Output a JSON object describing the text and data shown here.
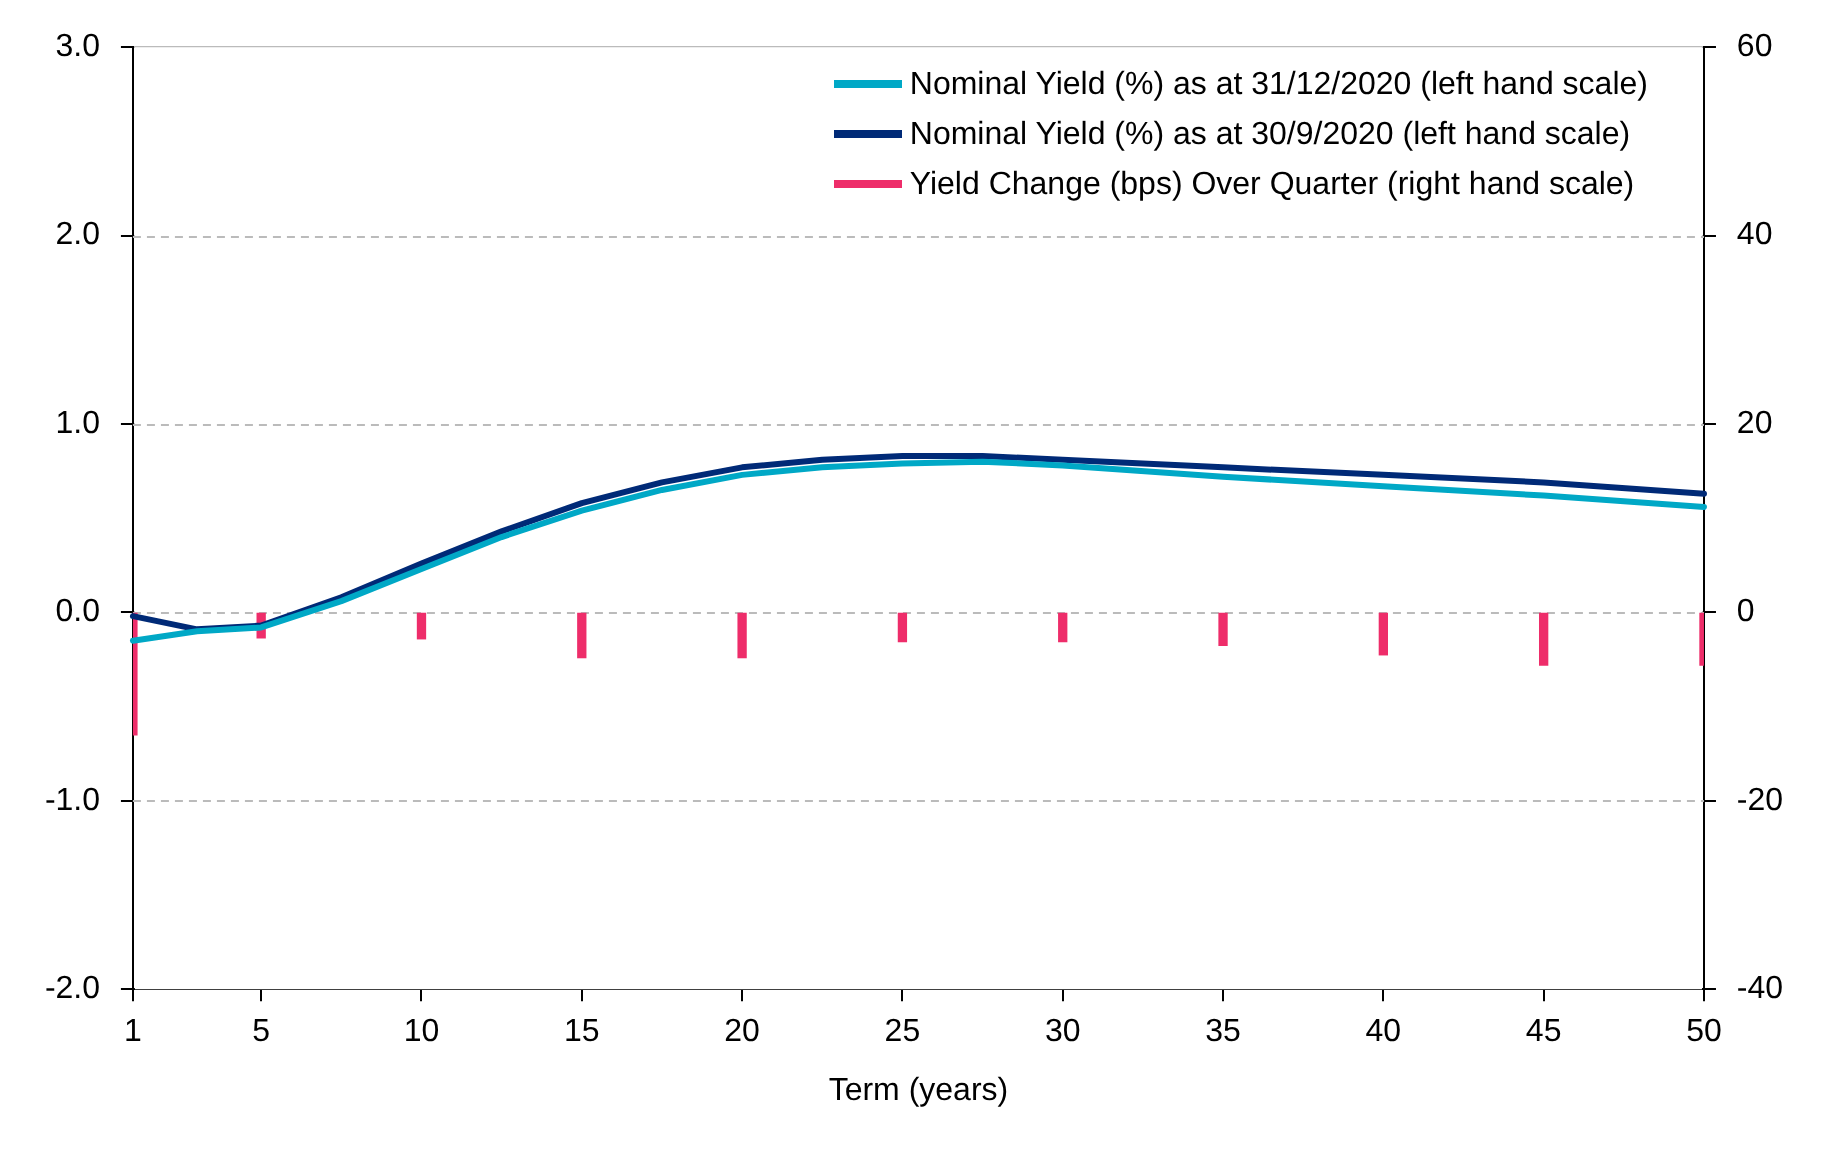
{
  "chart_data": {
    "type": "line",
    "xlabel": "Term (years)",
    "xlim": [
      1,
      50
    ],
    "xticks": [
      1,
      5,
      10,
      15,
      20,
      25,
      30,
      35,
      40,
      45,
      50
    ],
    "ylim": [
      -2,
      3
    ],
    "yticks": [
      {
        "value": -2,
        "label": "-2.0"
      },
      {
        "value": -1,
        "label": "-1.0"
      },
      {
        "value": 0,
        "label": "0.0"
      },
      {
        "value": 1,
        "label": "1.0"
      },
      {
        "value": 2,
        "label": "2.0"
      },
      {
        "value": 3,
        "label": "3.0"
      }
    ],
    "y2lim": [
      -40,
      60
    ],
    "y2ticks": [
      -40,
      -20,
      0,
      20,
      40,
      60
    ],
    "grid": "y",
    "legend": "top right",
    "series": [
      {
        "name": "Nominal Yield (%) as at 31/12/2020 (left hand scale)",
        "color": "#00a8c6",
        "x": [
          1,
          3,
          5,
          7.5,
          10,
          12.5,
          15,
          17.5,
          20,
          22.5,
          25,
          27.5,
          30,
          35,
          40,
          45,
          50
        ],
        "values": [
          -0.15,
          -0.1,
          -0.08,
          0.06,
          0.23,
          0.4,
          0.54,
          0.65,
          0.73,
          0.77,
          0.79,
          0.8,
          0.78,
          0.72,
          0.67,
          0.62,
          0.56
        ]
      },
      {
        "name": "Nominal Yield (%) as at 30/9/2020 (left hand scale)",
        "color": "#002a77",
        "x": [
          1,
          3,
          5,
          7.5,
          10,
          12.5,
          15,
          17.5,
          20,
          22.5,
          25,
          27.5,
          30,
          35,
          40,
          45,
          50
        ],
        "values": [
          -0.02,
          -0.09,
          -0.07,
          0.08,
          0.26,
          0.43,
          0.58,
          0.69,
          0.77,
          0.81,
          0.83,
          0.83,
          0.81,
          0.77,
          0.73,
          0.69,
          0.63
        ]
      },
      {
        "name": "Yield Change (bps) Over Quarter (right hand scale)",
        "type": "bar",
        "axis": "y2",
        "color": "#ee2d6a",
        "x": [
          1,
          5,
          10,
          15,
          20,
          25,
          30,
          35,
          40,
          45,
          50
        ],
        "values": [
          -13,
          -2.7,
          -2.8,
          -4.8,
          -4.8,
          -3.1,
          -3.1,
          -3.5,
          -4.5,
          -5.6,
          -5.6
        ]
      }
    ]
  }
}
